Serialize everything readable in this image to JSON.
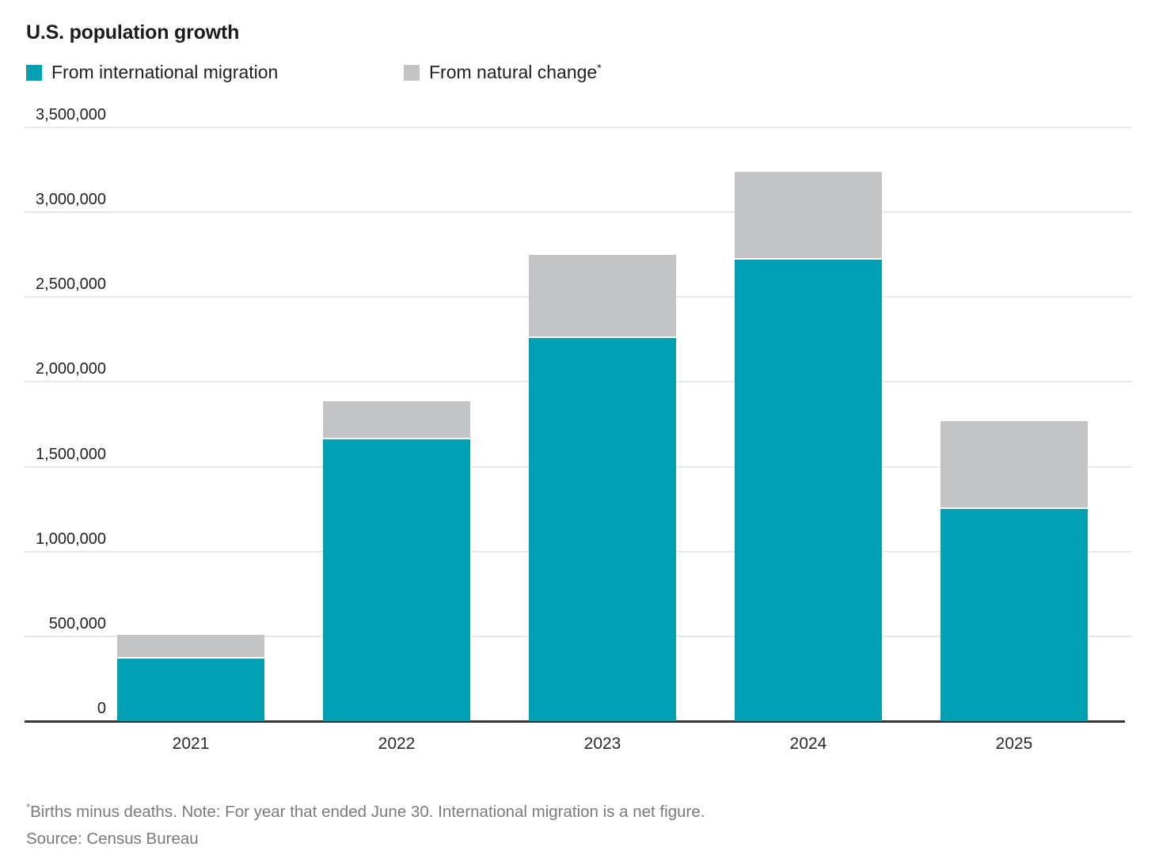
{
  "title": "U.S. population growth",
  "legend": {
    "items": [
      {
        "label": "From international migration",
        "color": "#00a0b4"
      },
      {
        "label": "From natural change",
        "suffix": "*",
        "color": "#c1c3c4"
      }
    ]
  },
  "chart_data": {
    "type": "bar",
    "stacked": true,
    "title": "U.S. population growth",
    "categories": [
      "2021",
      "2022",
      "2023",
      "2024",
      "2025"
    ],
    "series": [
      {
        "name": "From international migration",
        "color": "#00a0b4",
        "values": [
          370000,
          1660000,
          2260000,
          2720000,
          1250000
        ]
      },
      {
        "name": "From natural change*",
        "color": "#c1c3c4",
        "values": [
          140000,
          225000,
          490000,
          520000,
          520000
        ]
      }
    ],
    "totals": [
      510000,
      1885000,
      2750000,
      3240000,
      1770000
    ],
    "xlabel": "",
    "ylabel": "",
    "ylim": [
      0,
      3500000
    ],
    "ytick_step": 500000,
    "ytick_labels": [
      "0",
      "500,000",
      "1,000,000",
      "1,500,000",
      "2,000,000",
      "2,500,000",
      "3,000,000",
      "3,500,000"
    ],
    "grid": "horizontal",
    "legend_position": "top-left"
  },
  "footer": {
    "asterisk": "*",
    "note": "Births minus deaths. Note: For year that ended June 30. International migration is a net figure.",
    "source": "Source: Census Bureau"
  },
  "colors": {
    "accent_teal": "#00a0b4",
    "neutral_gray": "#c1c3c4",
    "text_dark": "#222222",
    "text_muted": "#7a7a7a",
    "gridline": "#e8e8e8",
    "axis": "#333333",
    "background": "#ffffff"
  }
}
